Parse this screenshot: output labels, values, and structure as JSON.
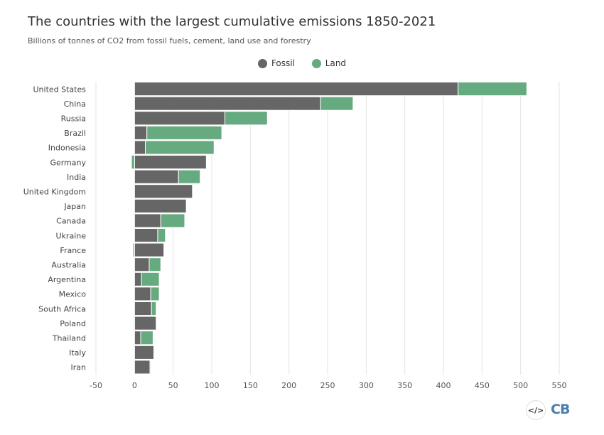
{
  "chart_data": {
    "type": "bar",
    "orientation": "horizontal",
    "stacked": true,
    "title": "The countries with the largest cumulative emissions 1850-2021",
    "subtitle": "Billions of tonnes of CO2 from fossil fuels, cement, land use and forestry",
    "categories": [
      "United States",
      "China",
      "Russia",
      "Brazil",
      "Indonesia",
      "Germany",
      "India",
      "United Kingdom",
      "Japan",
      "Canada",
      "Ukraine",
      "France",
      "Australia",
      "Argentina",
      "Mexico",
      "South Africa",
      "Poland",
      "Thailand",
      "Italy",
      "Iran"
    ],
    "series": [
      {
        "name": "Fossil",
        "color": "#666666",
        "values": [
          419,
          241,
          117,
          16,
          14,
          93,
          57,
          75,
          67,
          34,
          30,
          38,
          19,
          9,
          21,
          22,
          28,
          8,
          25,
          20
        ]
      },
      {
        "name": "Land",
        "color": "#66aa7f",
        "values": [
          89,
          42,
          55,
          97,
          89,
          -4,
          28,
          0,
          0,
          31,
          10,
          -2,
          15,
          23,
          11,
          6,
          -1,
          16,
          0,
          1
        ]
      }
    ],
    "xlim": [
      -50,
      550
    ],
    "xticks": [
      -50,
      0,
      50,
      100,
      150,
      200,
      250,
      300,
      350,
      400,
      450,
      500,
      550
    ],
    "grid": true,
    "legend": "top-center"
  },
  "footer": {
    "embed": "</>",
    "logo": "CB"
  }
}
